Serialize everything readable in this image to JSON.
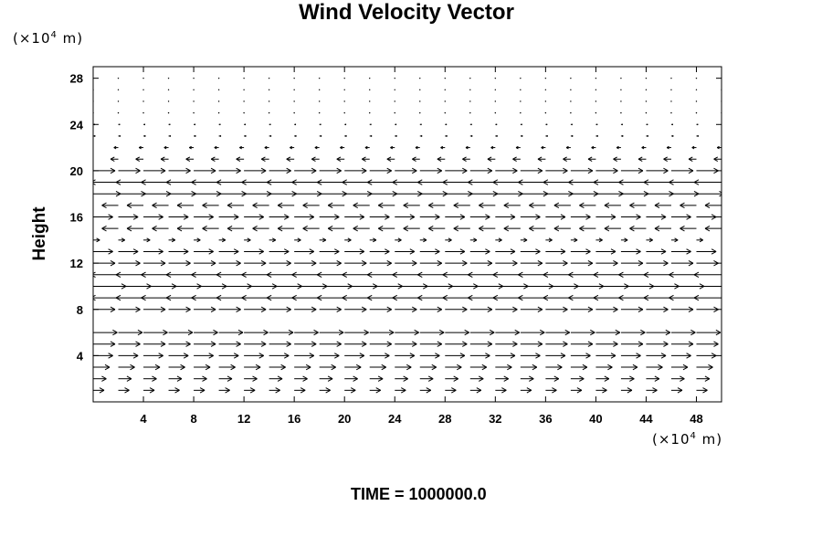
{
  "chart_data": {
    "type": "vector-field",
    "title": "Wind Velocity Vector",
    "ylabel": "Height",
    "y_unit": {
      "prefix": "(×10",
      "exp": "4",
      "suffix": " m)"
    },
    "x_unit": {
      "prefix": "(×10",
      "exp": "4",
      "suffix": " m)"
    },
    "footer_label": "TIME = ",
    "footer_value": "1000000.0",
    "xlim": [
      0,
      50
    ],
    "ylim": [
      0,
      29
    ],
    "xticks": [
      4,
      8,
      12,
      16,
      20,
      24,
      28,
      32,
      36,
      40,
      44,
      48
    ],
    "yticks": [
      4,
      8,
      12,
      16,
      20,
      24,
      28
    ],
    "grid": false,
    "arrow_columns_x": [
      0,
      2,
      4,
      6,
      8,
      10,
      12,
      14,
      16,
      18,
      20,
      22,
      24,
      26,
      28,
      30,
      32,
      34,
      36,
      38,
      40,
      42,
      44,
      46,
      48,
      50
    ],
    "levels": [
      {
        "y": 1,
        "u": 1.0
      },
      {
        "y": 2,
        "u": 1.2
      },
      {
        "y": 3,
        "u": 1.5
      },
      {
        "y": 4,
        "u": 1.8
      },
      {
        "y": 5,
        "u": 2.0
      },
      {
        "y": 6,
        "u": 2.2
      },
      {
        "y": 8,
        "u": 2.0
      },
      {
        "y": 9,
        "u": -2.5
      },
      {
        "y": 10,
        "u": 3.0
      },
      {
        "y": 11,
        "u": -2.5
      },
      {
        "y": 12,
        "u": 2.0
      },
      {
        "y": 13,
        "u": 1.8
      },
      {
        "y": 14,
        "u": 0.6
      },
      {
        "y": 15,
        "u": -1.5
      },
      {
        "y": 16,
        "u": 1.8
      },
      {
        "y": 17,
        "u": -1.5
      },
      {
        "y": 18,
        "u": 2.5
      },
      {
        "y": 19,
        "u": -2.5
      },
      {
        "y": 20,
        "u": 2.0
      },
      {
        "y": 21,
        "u": -0.7
      },
      {
        "y": 22,
        "u": -0.4
      },
      {
        "y": 23,
        "u": 0.2
      },
      {
        "y": 24,
        "u": 0.15
      },
      {
        "y": 25,
        "u": 0.1
      },
      {
        "y": 26,
        "u": 0.08
      },
      {
        "y": 27,
        "u": 0.06
      },
      {
        "y": 28,
        "u": 0.05
      }
    ]
  }
}
